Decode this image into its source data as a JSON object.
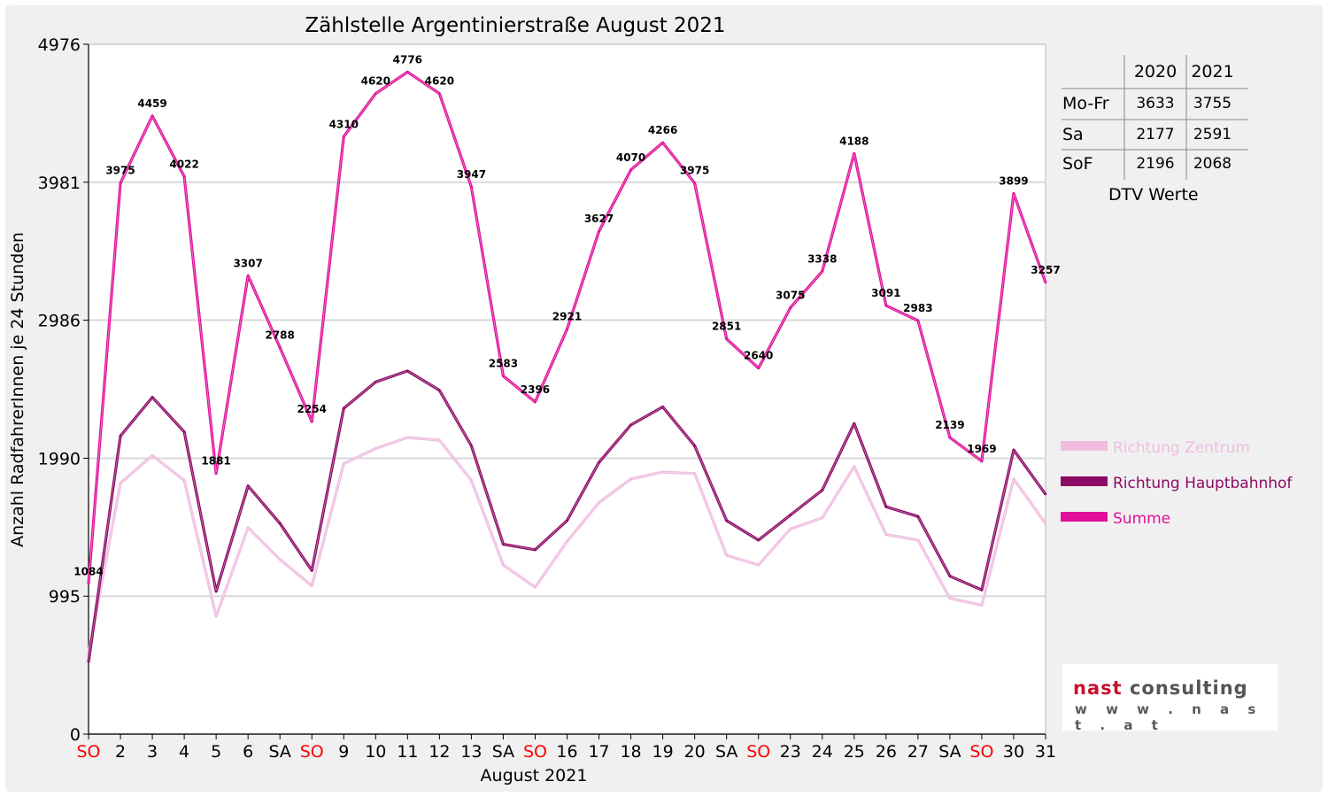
{
  "chart_data": {
    "type": "line",
    "title": "Zählstelle Argentinierstraße August 2021",
    "xlabel": "August 2021",
    "ylabel": "Anzahl RadfahrerInnen je 24 Stunden",
    "ylim": [
      0,
      4976
    ],
    "yticks": [
      0,
      995,
      1990,
      2986,
      3981,
      4976
    ],
    "grid": true,
    "legend_position": "right",
    "categories": [
      "SO",
      "2",
      "3",
      "4",
      "5",
      "6",
      "SA",
      "SO",
      "9",
      "10",
      "11",
      "12",
      "13",
      "SA",
      "SO",
      "16",
      "17",
      "18",
      "19",
      "20",
      "SA",
      "SO",
      "23",
      "24",
      "25",
      "26",
      "27",
      "SA",
      "SO",
      "30",
      "31"
    ],
    "weekend_marker": "SO",
    "weekend_color": "#ff0000",
    "series": [
      {
        "name": "Richtung Zentrum",
        "color": "#f0bde0",
        "values": [
          580,
          1810,
          2010,
          1830,
          850,
          1490,
          1260,
          1070,
          1950,
          2060,
          2140,
          2120,
          1830,
          1220,
          1060,
          1390,
          1670,
          1840,
          1890,
          1880,
          1290,
          1220,
          1480,
          1560,
          1930,
          1440,
          1400,
          980,
          930,
          1840,
          1520
        ]
      },
      {
        "name": "Richtung Hauptbahnhof",
        "color": "#8c0a64",
        "values": [
          520,
          2150,
          2430,
          2180,
          1030,
          1790,
          1520,
          1180,
          2350,
          2540,
          2620,
          2480,
          2080,
          1370,
          1330,
          1540,
          1960,
          2230,
          2360,
          2080,
          1540,
          1400,
          1580,
          1760,
          2240,
          1640,
          1570,
          1140,
          1040,
          2050,
          1730
        ]
      },
      {
        "name": "Summe",
        "color": "#e0109a",
        "values": [
          1084,
          3975,
          4459,
          4022,
          1881,
          3307,
          2788,
          2254,
          4310,
          4620,
          4776,
          4620,
          3947,
          2583,
          2396,
          2921,
          3627,
          4070,
          4266,
          3975,
          2851,
          2640,
          3075,
          3338,
          4188,
          3091,
          2983,
          2139,
          1969,
          3899,
          3257
        ]
      }
    ],
    "data_labels": [
      1084,
      3975,
      4459,
      4022,
      1881,
      3307,
      2788,
      2254,
      4310,
      4620,
      4776,
      4620,
      3947,
      2583,
      2396,
      2921,
      3627,
      4070,
      4266,
      3975,
      2851,
      2640,
      3075,
      3338,
      4188,
      3091,
      2983,
      2139,
      1969,
      3899,
      3257
    ]
  },
  "dtv": {
    "headers": [
      "",
      "2020",
      "2021"
    ],
    "rows": [
      [
        "Mo-Fr",
        "3633",
        "3755"
      ],
      [
        "Sa",
        "2177",
        "2591"
      ],
      [
        "SoF",
        "2196",
        "2068"
      ]
    ],
    "caption": "DTV Werte"
  },
  "logo": {
    "brand_a": "nast",
    "brand_b": "consulting",
    "url": "w w w . n a s t . a t",
    "color_a": "#c8102e",
    "color_b": "#555555"
  }
}
